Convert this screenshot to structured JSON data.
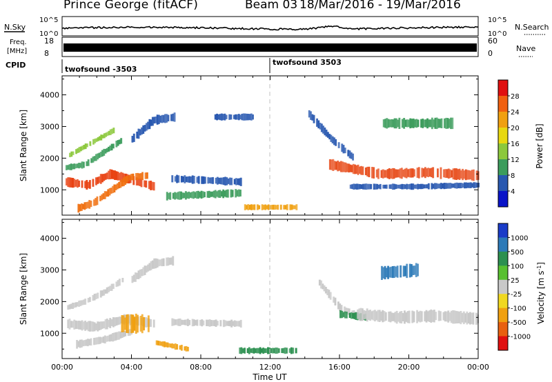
{
  "header": {
    "station": "Prince George (fitACF)",
    "beam": "Beam 03",
    "dates": "18/Mar/2016 - 19/Mar/2016"
  },
  "top_panels": {
    "nsky_label": "N.Sky",
    "nsky_ticks": [
      "10^5",
      "10^0"
    ],
    "nsearch_label": "N.Search",
    "nsearch_ticks": [
      "10^5",
      "10^0"
    ],
    "freq_label_1": "Freq.",
    "freq_label_2": "[MHz]",
    "freq_ticks": [
      "18",
      "8"
    ],
    "nave_label": "Nave",
    "nave_ticks": [
      "60",
      "0"
    ],
    "cpid_label": "CPID",
    "cpid_segments": [
      "twofsound -3503",
      "twofsound 3503"
    ]
  },
  "chart_data": [
    {
      "type": "heatmap",
      "quantity": "Power",
      "ylabel": "Slant Range [km]",
      "yticks": [
        1000,
        2000,
        3000,
        4000
      ],
      "ylim": [
        200,
        4600
      ],
      "xlim": [
        0,
        24
      ],
      "colorbar": {
        "label": "Power [dB]",
        "ticks": [
          "28",
          "24",
          "20",
          "16",
          "12",
          "8",
          "4"
        ],
        "colors": [
          "#e01010",
          "#f06010",
          "#f0a010",
          "#e8d810",
          "#8cc83c",
          "#3c9c5c",
          "#2858b0",
          "#0a14c8"
        ]
      },
      "bands": [
        {
          "x": [
            0.2,
            5.3
          ],
          "range_center": [
            1250,
            1150,
            1500,
            1300,
            1100
          ],
          "width": 260,
          "color": "#e84010"
        },
        {
          "x": [
            0.8,
            4.9
          ],
          "range_center": [
            400,
            600,
            1000,
            1400,
            1450
          ],
          "width": 220,
          "color": "#f07010"
        },
        {
          "x": [
            0.2,
            3.5
          ],
          "range_center": [
            1700,
            1800,
            2200,
            2600
          ],
          "width": 180,
          "color": "#3c9c5c"
        },
        {
          "x": [
            0.4,
            3.0
          ],
          "range_center": [
            2100,
            2500,
            2900
          ],
          "width": 150,
          "color": "#8cc83c"
        },
        {
          "x": [
            4.0,
            6.5
          ],
          "range_center": [
            2600,
            3200,
            3300
          ],
          "width": 260,
          "color": "#2858b0"
        },
        {
          "x": [
            6.3,
            10.3
          ],
          "range_center": [
            1350,
            1250
          ],
          "width": 220,
          "color": "#2858b0"
        },
        {
          "x": [
            6.0,
            10.3
          ],
          "range_center": [
            800,
            900
          ],
          "width": 220,
          "color": "#3c9c5c"
        },
        {
          "x": [
            8.7,
            11.0
          ],
          "range_center": [
            3300,
            3300
          ],
          "width": 180,
          "color": "#2858b0"
        },
        {
          "x": [
            10.5,
            13.5
          ],
          "range_center": [
            450,
            450
          ],
          "width": 160,
          "color": "#f0a010"
        },
        {
          "x": [
            14.2,
            16.8
          ],
          "range_center": [
            3400,
            2600,
            2000
          ],
          "width": 220,
          "color": "#2858b0"
        },
        {
          "x": [
            15.4,
            24.0
          ],
          "range_center": [
            1800,
            1500,
            1550,
            1450
          ],
          "width": 300,
          "color": "#e85020"
        },
        {
          "x": [
            16.5,
            24.0
          ],
          "range_center": [
            1100,
            1100,
            1150
          ],
          "width": 160,
          "color": "#2858b0"
        },
        {
          "x": [
            18.5,
            22.5
          ],
          "range_center": [
            3100,
            3100
          ],
          "width": 300,
          "color": "#3c9c5c"
        }
      ]
    },
    {
      "type": "heatmap",
      "quantity": "Velocity",
      "ylabel": "Slant Range [km]",
      "yticks": [
        1000,
        2000,
        3000,
        4000
      ],
      "ylim": [
        200,
        4600
      ],
      "xlim": [
        0,
        24
      ],
      "xlabel": "Time UT",
      "xticks": [
        "00:00",
        "04:00",
        "08:00",
        "12:00",
        "16:00",
        "20:00",
        "00:00"
      ],
      "colorbar": {
        "label": "Velocity [m s^-1]",
        "ticks": [
          "1000",
          "500",
          "100",
          "25",
          "-25",
          "-100",
          "-500",
          "-1000"
        ],
        "colors": [
          "#1a3cc8",
          "#2c7ab8",
          "#2c9050",
          "#58c030",
          "#c8c8c8",
          "#f0d820",
          "#f0a010",
          "#e86010",
          "#e01010"
        ]
      },
      "bands": [
        {
          "x": [
            0.2,
            5.3
          ],
          "range_center": [
            1300,
            1200,
            1450,
            1300
          ],
          "width": 280,
          "color": "#c8c8c8"
        },
        {
          "x": [
            0.8,
            4.0
          ],
          "range_center": [
            650,
            800,
            1050
          ],
          "width": 220,
          "color": "#c8c8c8"
        },
        {
          "x": [
            3.4,
            5.0
          ],
          "range_center": [
            1300,
            1300
          ],
          "width": 520,
          "color": "#f0a010"
        },
        {
          "x": [
            0.2,
            3.5
          ],
          "range_center": [
            1800,
            2000,
            2300,
            2700
          ],
          "width": 180,
          "color": "#c8c8c8"
        },
        {
          "x": [
            4.0,
            6.5
          ],
          "range_center": [
            2700,
            3200,
            3300
          ],
          "width": 260,
          "color": "#c8c8c8"
        },
        {
          "x": [
            5.4,
            7.2
          ],
          "range_center": [
            700,
            500
          ],
          "width": 160,
          "color": "#f0a010"
        },
        {
          "x": [
            6.3,
            10.3
          ],
          "range_center": [
            1350,
            1300
          ],
          "width": 200,
          "color": "#c8c8c8"
        },
        {
          "x": [
            10.2,
            13.5
          ],
          "range_center": [
            450,
            450
          ],
          "width": 180,
          "color": "#2c9050"
        },
        {
          "x": [
            14.8,
            17.2
          ],
          "range_center": [
            2600,
            1800,
            1500
          ],
          "width": 220,
          "color": "#c8c8c8"
        },
        {
          "x": [
            16.0,
            17.5
          ],
          "range_center": [
            1600,
            1500
          ],
          "width": 200,
          "color": "#2c9050"
        },
        {
          "x": [
            17.0,
            24.0
          ],
          "range_center": [
            1600,
            1500,
            1550,
            1450
          ],
          "width": 340,
          "color": "#c8c8c8"
        },
        {
          "x": [
            18.3,
            20.5
          ],
          "range_center": [
            2900,
            3000
          ],
          "width": 380,
          "color": "#2c7ab8"
        }
      ]
    }
  ],
  "colors": {
    "frame": "#000000",
    "gap": "#ffffff",
    "midnight_line": "#c0c0c0"
  }
}
